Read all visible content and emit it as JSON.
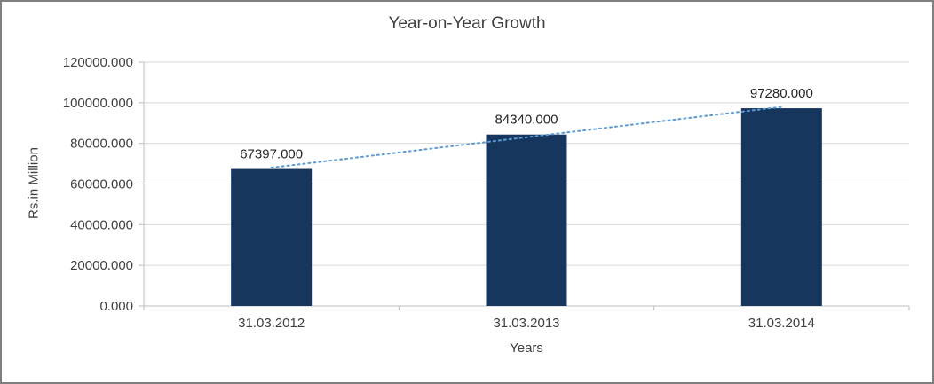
{
  "chart_data": {
    "type": "bar",
    "title": "Year-on-Year Growth",
    "categories": [
      "31.03.2012",
      "31.03.2013",
      "31.03.2014"
    ],
    "values": [
      67397,
      84340,
      97280
    ],
    "data_labels": [
      "67397.000",
      "84340.000",
      "97280.000"
    ],
    "xlabel": "Years",
    "ylabel": "Rs.in Million",
    "ylim": [
      0,
      120000
    ],
    "yticks": [
      0,
      20000,
      40000,
      60000,
      80000,
      100000,
      120000
    ],
    "ytick_labels": [
      "0.000",
      "20000.000",
      "40000.000",
      "60000.000",
      "80000.000",
      "100000.000",
      "120000.000"
    ],
    "grid": true,
    "legend": "none",
    "bar_color": "#17365D",
    "trendline": {
      "style": "dotted",
      "color": "#5B9BD5"
    },
    "grid_color": "#D9D9D9",
    "axis_color": "#BFBFBF"
  }
}
